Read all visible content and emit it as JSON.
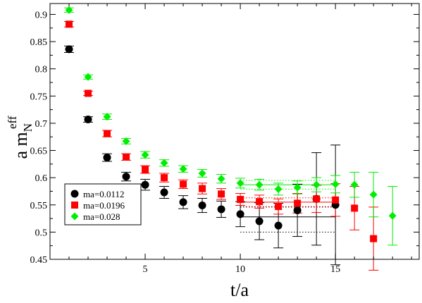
{
  "chart_data": {
    "type": "scatter",
    "xlabel": "t/a",
    "ylabel": {
      "main": "a m",
      "sub": "N",
      "sup": "eff"
    },
    "xlim": [
      0,
      19.4
    ],
    "ylim": [
      0.45,
      0.92
    ],
    "x_ticks": [
      5,
      10,
      15
    ],
    "y_ticks": [
      0.45,
      0.5,
      0.55,
      0.6,
      0.65,
      0.7,
      0.75,
      0.8,
      0.85,
      0.9
    ],
    "y_tick_labels": [
      "0.45",
      "0.5",
      "0.55",
      "0.6",
      "0.65",
      "0.7",
      "0.75",
      "0.8",
      "0.85",
      "0.9"
    ],
    "x_tick_labels": [
      "5",
      "10",
      "15"
    ],
    "grid": false,
    "legend_position": "lower-left",
    "series": [
      {
        "name": "ma=0.0112",
        "marker": "circle",
        "color": "#000000",
        "points": [
          {
            "x": 1,
            "y": 0.836,
            "err": 0.006
          },
          {
            "x": 2,
            "y": 0.707,
            "err": 0.005
          },
          {
            "x": 3,
            "y": 0.637,
            "err": 0.007
          },
          {
            "x": 4,
            "y": 0.602,
            "err": 0.008
          },
          {
            "x": 5,
            "y": 0.587,
            "err": 0.01
          },
          {
            "x": 6,
            "y": 0.573,
            "err": 0.011
          },
          {
            "x": 7,
            "y": 0.555,
            "err": 0.012
          },
          {
            "x": 8,
            "y": 0.549,
            "err": 0.013
          },
          {
            "x": 9,
            "y": 0.542,
            "err": 0.015
          },
          {
            "x": 10,
            "y": 0.533,
            "err": 0.023
          },
          {
            "x": 11,
            "y": 0.52,
            "err": 0.034
          },
          {
            "x": 12,
            "y": 0.512,
            "err": 0.041
          },
          {
            "x": 13,
            "y": 0.54,
            "err": 0.048
          },
          {
            "x": 14,
            "y": 0.561,
            "err": 0.085
          },
          {
            "x": 15,
            "y": 0.55,
            "err": 0.11
          }
        ],
        "fit": {
          "x_range": [
            10,
            15
          ],
          "value": 0.528,
          "band": [
            0.5,
            0.546
          ]
        }
      },
      {
        "name": "ma=0.0196",
        "marker": "square",
        "color": "#ff0000",
        "points": [
          {
            "x": 1,
            "y": 0.882,
            "err": 0.005
          },
          {
            "x": 2,
            "y": 0.755,
            "err": 0.004
          },
          {
            "x": 3,
            "y": 0.681,
            "err": 0.006
          },
          {
            "x": 4,
            "y": 0.638,
            "err": 0.006
          },
          {
            "x": 5,
            "y": 0.615,
            "err": 0.007
          },
          {
            "x": 6,
            "y": 0.6,
            "err": 0.008
          },
          {
            "x": 7,
            "y": 0.588,
            "err": 0.008
          },
          {
            "x": 8,
            "y": 0.58,
            "err": 0.01
          },
          {
            "x": 9,
            "y": 0.57,
            "err": 0.01
          },
          {
            "x": 10,
            "y": 0.56,
            "err": 0.011
          },
          {
            "x": 11,
            "y": 0.556,
            "err": 0.012
          },
          {
            "x": 12,
            "y": 0.547,
            "err": 0.014
          },
          {
            "x": 13,
            "y": 0.553,
            "err": 0.018
          },
          {
            "x": 14,
            "y": 0.561,
            "err": 0.025
          },
          {
            "x": 15,
            "y": 0.559,
            "err": 0.03
          },
          {
            "x": 16,
            "y": 0.544,
            "err": 0.04
          },
          {
            "x": 17,
            "y": 0.488,
            "err": 0.058
          }
        ],
        "fit": {
          "x_range": [
            10,
            15
          ],
          "value": 0.555,
          "band": [
            0.547,
            0.563
          ]
        }
      },
      {
        "name": "ma=0.028",
        "marker": "diamond",
        "color": "#00ee00",
        "points": [
          {
            "x": 1,
            "y": 0.908,
            "err": 0.004
          },
          {
            "x": 2,
            "y": 0.785,
            "err": 0.004
          },
          {
            "x": 3,
            "y": 0.712,
            "err": 0.005
          },
          {
            "x": 4,
            "y": 0.667,
            "err": 0.005
          },
          {
            "x": 5,
            "y": 0.642,
            "err": 0.006
          },
          {
            "x": 6,
            "y": 0.627,
            "err": 0.006
          },
          {
            "x": 7,
            "y": 0.616,
            "err": 0.006
          },
          {
            "x": 8,
            "y": 0.608,
            "err": 0.007
          },
          {
            "x": 9,
            "y": 0.598,
            "err": 0.008
          },
          {
            "x": 10,
            "y": 0.59,
            "err": 0.009
          },
          {
            "x": 11,
            "y": 0.587,
            "err": 0.01
          },
          {
            "x": 12,
            "y": 0.579,
            "err": 0.011
          },
          {
            "x": 13,
            "y": 0.582,
            "err": 0.012
          },
          {
            "x": 14,
            "y": 0.587,
            "err": 0.013
          },
          {
            "x": 15,
            "y": 0.588,
            "err": 0.016
          },
          {
            "x": 16,
            "y": 0.587,
            "err": 0.023
          },
          {
            "x": 17,
            "y": 0.569,
            "err": 0.041
          },
          {
            "x": 18,
            "y": 0.53,
            "err": 0.054
          }
        ],
        "fit": {
          "x_range": [
            10,
            15
          ],
          "value": 0.587,
          "band": [
            0.579,
            0.595
          ]
        }
      }
    ]
  }
}
